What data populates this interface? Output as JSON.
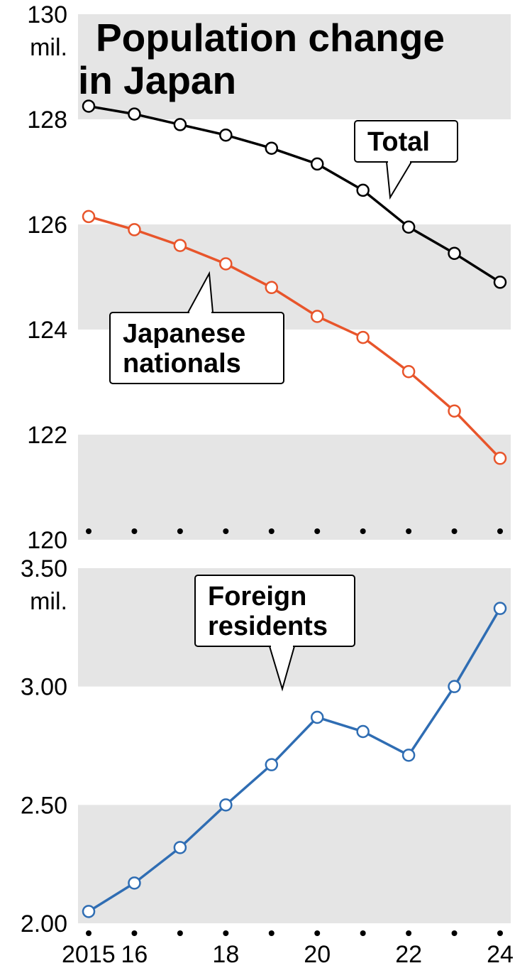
{
  "title": "Population change in Japan",
  "title_fontsize": 55,
  "title_fontweight": 900,
  "background_color": "#ffffff",
  "band_color": "#e5e5e5",
  "axis_text_color": "#000000",
  "axis_fontsize": 34,
  "callout_fontsize": 38,
  "callout_fontweight": 700,
  "callout_stroke": "#000000",
  "callout_fill": "#ffffff",
  "marker_fill": "#ffffff",
  "marker_radius": 8,
  "line_width": 3.5,
  "years": [
    2015,
    2016,
    2017,
    2018,
    2019,
    2020,
    2021,
    2022,
    2023,
    2024
  ],
  "x_tick_labels": [
    "2015",
    "16",
    "",
    "18",
    "",
    "20",
    "",
    "22",
    "",
    "24"
  ],
  "top_chart": {
    "type": "line",
    "unit_label": "mil.",
    "ylim": [
      120,
      130
    ],
    "ytick_step": 2,
    "y_tick_labels": [
      "120",
      "122",
      "124",
      "126",
      "128",
      "130"
    ],
    "series": {
      "total": {
        "label": "Total",
        "color": "#000000",
        "values": [
          128.25,
          128.1,
          127.9,
          127.7,
          127.45,
          127.15,
          126.65,
          125.95,
          125.45,
          124.9
        ]
      },
      "japanese": {
        "label": "Japanese nationals",
        "color": "#e8552b",
        "values": [
          126.15,
          125.9,
          125.6,
          125.25,
          124.8,
          124.25,
          123.85,
          123.2,
          122.45,
          121.55
        ]
      }
    }
  },
  "bottom_chart": {
    "type": "line",
    "unit_label": "mil.",
    "ylim": [
      2.0,
      3.5
    ],
    "ytick_step": 0.5,
    "y_tick_labels": [
      "2.00",
      "2.50",
      "3.00",
      "3.50"
    ],
    "series": {
      "foreign": {
        "label": "Foreign residents",
        "color": "#2f6db3",
        "values": [
          2.05,
          2.17,
          2.32,
          2.5,
          2.67,
          2.87,
          2.81,
          2.71,
          3.0,
          3.33
        ]
      }
    }
  }
}
